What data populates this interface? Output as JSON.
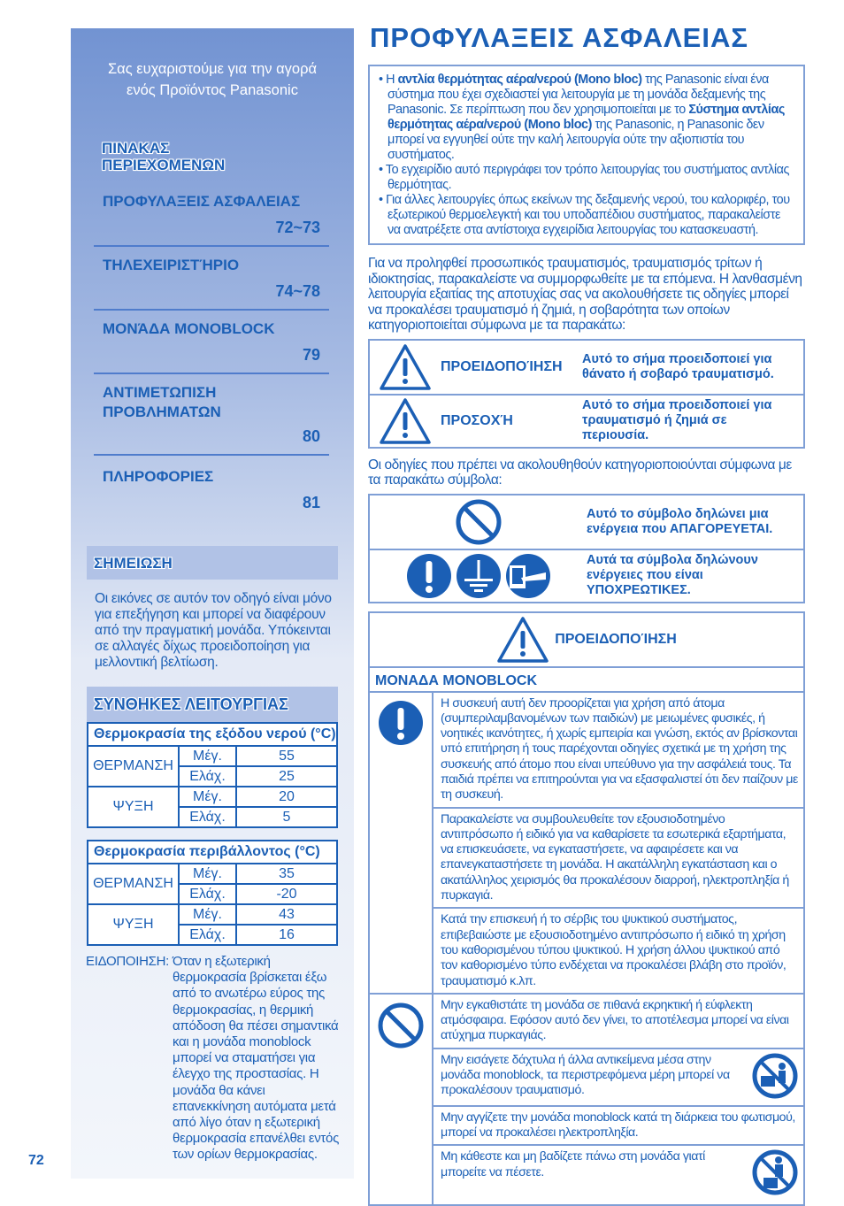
{
  "sidebar": {
    "thanks": [
      "Σας ευχαριστούμε για την αγορά",
      "ενός Προϊόντος Panasonic"
    ],
    "toc_heading": [
      "ΠΙΝΑΚΑΣ",
      "ΠΕΡΙΕΧΟΜΕΝΩΝ"
    ],
    "toc": [
      {
        "title": "ΠΡΟΦΥΛΑΞΕΙΣ ΑΣΦΑΛΕΙΑΣ",
        "pages": "72~73"
      },
      {
        "title": "ΤΗΛΕΧΕΙΡΙΣΤΉΡΙΟ",
        "pages": "74~78"
      },
      {
        "title": "ΜΟΝΆΔΑ MONOBLOCK",
        "pages": "79"
      },
      {
        "title": "ΑΝΤΙΜΕΤΩΠΙΣΗ ΠΡΟΒΛΗΜΑΤΩΝ",
        "pages": "80"
      },
      {
        "title": "ΠΛΗΡΟΦΟΡΙΕΣ",
        "pages": "81"
      }
    ],
    "note_heading": "ΣΗΜΕΙΩΣΗ",
    "note_text": "Οι εικόνες σε αυτόν τον οδηγό είναι μόνο για επεξήγηση και μπορεί να διαφέρουν από την πραγματική μονάδα. Υπόκεινται σε αλλαγές δίχως προειδοποίηση για μελλοντική βελτίωση.",
    "conditions_heading": "ΣΥΝΘΗΚΕΣ ΛΕΙΤΟΥΡΓΙΑΣ",
    "tables": [
      {
        "title": "Θερμοκρασία της εξόδου νερού (°C)",
        "rows": [
          {
            "mode": "ΘΕΡΜΑΝΣΗ",
            "max_label": "Μέγ.",
            "max": "55",
            "min_label": "Ελάχ.",
            "min": "25"
          },
          {
            "mode": "ΨΥΞΗ",
            "max_label": "Μέγ.",
            "max": "20",
            "min_label": "Ελάχ.",
            "min": "5"
          }
        ]
      },
      {
        "title": "Θερμοκρασία περιβάλλοντος (°C)",
        "rows": [
          {
            "mode": "ΘΕΡΜΑΝΣΗ",
            "max_label": "Μέγ.",
            "max": "35",
            "min_label": "Ελάχ.",
            "min": "-20"
          },
          {
            "mode": "ΨΥΞΗ",
            "max_label": "Μέγ.",
            "max": "43",
            "min_label": "Ελάχ.",
            "min": "16"
          }
        ]
      }
    ],
    "warning_label": "ΕΙΔΟΠΟΙΗΣΗ:",
    "warning_text": "Όταν η εξωτερική θερμοκρασία βρίσκεται έξω από το ανωτέρω εύρος της θερμοκρασίας, η θερμική απόδοση θα πέσει σημαντικά και η μονάδα monoblock μπορεί να σταματήσει για έλεγχο της προστασίας. Η μονάδα θα κάνει επανεκκίνηση αυτόματα μετά από λίγο όταν η εξωτερική θερμοκρασία επανέλθει εντός των ορίων θερμοκρασίας."
  },
  "page_number": "72",
  "main": {
    "title": "ΠΡΟΦΥΛΑΞΕΙΣ ΑΣΦΑΛΕΙΑΣ",
    "intro": {
      "b1_pre": "Η ",
      "b1_bold1": "αντλία θερμότητας αέρα/νερού (Mono bloc)",
      "b1_mid": " της Panasonic είναι ένα σύστημα που έχει σχεδιαστεί για λειτουργία με τη μονάδα δεξαμενής της Panasonic. Σε περίπτωση που δεν χρησιμοποιείται με το ",
      "b1_bold2": "Σύστημα αντλίας θερμότητας αέρα/νερού (Mono bloc)",
      "b1_post": " της Panasonic, η Panasonic δεν μπορεί να εγγυηθεί ούτε την καλή λειτουργία ούτε την αξιοπιστία του συστήματος.",
      "b2": "Το εγχειρίδιο αυτό περιγράφει τον τρόπο λειτουργίας του συστήματος αντλίας θερμότητας.",
      "b3": "Για άλλες λειτουργίες όπως εκείνων της δεξαμενής νερού, του καλοριφέρ, του εξωτερικού θερμοελεγκτή και του υποδαπέδιου συστήματος, παρακαλείστε να ανατρέξετε στα αντίστοιχα εγχειρίδια λειτουργίας του κατασκευαστή."
    },
    "para1": "Για να προληφθεί προσωπικός τραυματισμός, τραυματισμός τρίτων ή ιδιοκτησίας, παρακαλείστε να συμμορφωθείτε με τα επόμενα. Η λανθασμένη λειτουργία εξαιτίας της αποτυχίας σας να ακολουθήσετε τις οδηγίες μπορεί να προκαλέσει τραυματισμό ή ζημιά, η σοβαρότητα των οποίων κατηγοριοποιείται σύμφωνα με τα παρακάτω:",
    "signals": [
      {
        "label": "ΠΡΟΕΙΔΟΠΟΊΗΣΗ",
        "desc": "Αυτό το σήμα προειδοποιεί για θάνατο ή σοβαρό τραυματισμό."
      },
      {
        "label": "ΠΡΟΣΟΧΉ",
        "desc": "Αυτό το σήμα προειδοποιεί για τραυματισμό ή ζημιά σε περιουσία."
      }
    ],
    "para2": "Οι οδηγίες που πρέπει να ακολουθηθούν κατηγοριοποιούνται σύμφωνα με τα παρακάτω σύμβολα:",
    "symbols": [
      {
        "icons": [
          "prohibited-icon"
        ],
        "desc": "Αυτό το σύμβολο δηλώνει μια ενέργεια που ΑΠΑΓΟΡΕΥΕΤΑΙ."
      },
      {
        "icons": [
          "mandatory-exclamation-icon",
          "earth-ground-icon",
          "unplug-icon"
        ],
        "desc": "Αυτά τα σύμβολα δηλώνουν ενέργειες που είναι ΥΠΟΧΡΕΩΤΙΚΕΣ."
      }
    ],
    "warning_table": {
      "heading": "ΠΡΟΕΙΔΟΠΟΊΗΣΗ",
      "section": "ΜΟΝΑΔΑ MONOBLOCK",
      "mandatory": [
        "Η συσκευή αυτή δεν προορίζεται για χρήση από άτομα (συμπεριλαμβανομένων των παιδιών) με μειωμένες φυσικές, ή νοητικές ικανότητες, ή χωρίς εμπειρία και γνώση, εκτός αν βρίσκονται υπό επιτήρηση ή τους παρέχονται οδηγίες σχετικά με τη χρήση της συσκευής από άτομο που είναι υπεύθυνο για την ασφάλειά τους. Τα παιδιά πρέπει να επιτηρούνται για να εξασφαλιστεί ότι δεν παίζουν με τη συσκευή.",
        "Παρακαλείστε να συμβουλευθείτε τον εξουσιοδοτημένο αντιπρόσωπο ή ειδικό για να καθαρίσετε τα εσωτερικά εξαρτήματα, να επισκευάσετε, να εγκαταστήσετε, να αφαιρέσετε και να επανεγκαταστήσετε τη μονάδα. Η ακατάλληλη εγκατάσταση και ο ακατάλληλος χειρισμός θα προκαλέσουν διαρροή, ηλεκτροπληξία ή πυρκαγιά.",
        "Κατά την επισκευή ή το σέρβις του ψυκτικού συστήματος, επιβεβαιώστε με εξουσιοδοτημένο αντιπρόσωπο ή ειδικό τη χρήση του καθορισμένου τύπου ψυκτικού. Η χρήση άλλου ψυκτικού από τον καθορισμένο τύπο ενδέχεται να προκαλέσει βλάβη στο προϊόν, τραυματισμό κ.λπ."
      ],
      "prohibited": [
        "Μην εγκαθιστάτε τη μονάδα σε πιθανά εκρηκτική ή εύφλεκτη ατμόσφαιρα. Εφόσον αυτό δεν γίνει, το αποτέλεσμα μπορεί να είναι ατύχημα πυρκαγιάς.",
        "Μην εισάγετε δάχτυλα ή άλλα αντικείμενα μέσα στην μονάδα monoblock, τα περιστρεφόμενα μέρη μπορεί να προκαλέσουν τραυματισμό.",
        "Μην αγγίζετε την μονάδα monoblock κατά τη διάρκεια του φωτισμού, μπορεί να προκαλέσει ηλεκτροπληξία.",
        "Μη κάθεστε και μη βαδίζετε πάνω στη μονάδα γιατί μπορείτε να πέσετε."
      ]
    }
  },
  "colors": {
    "primary_blue": "#1b5fb5",
    "border": "#7f9fd6",
    "sidebar_top": "#7293d2"
  }
}
